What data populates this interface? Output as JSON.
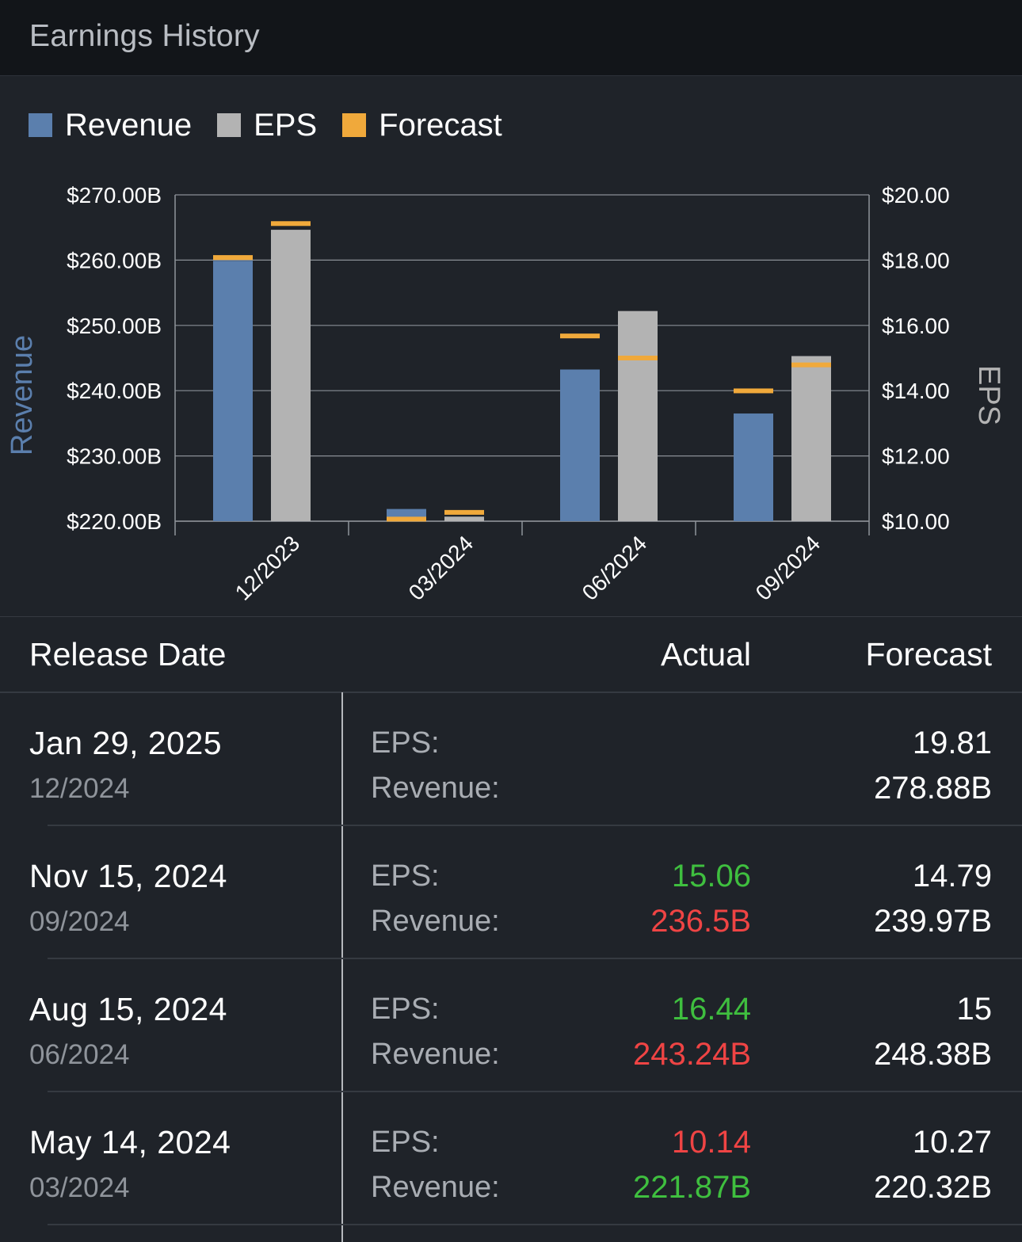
{
  "header": {
    "title": "Earnings History"
  },
  "legend": [
    {
      "label": "Revenue",
      "color": "#5b7fad"
    },
    {
      "label": "EPS",
      "color": "#b3b3b3"
    },
    {
      "label": "Forecast",
      "color": "#f0a93b"
    }
  ],
  "colors": {
    "revenue": "#5b7fad",
    "eps": "#b3b3b3",
    "forecast": "#f0a93b",
    "positive": "#3fbf3f",
    "negative": "#ef4444"
  },
  "chart_data": {
    "type": "bar",
    "categories": [
      "12/2023",
      "03/2024",
      "06/2024",
      "09/2024"
    ],
    "ylabel_left": "Revenue",
    "ylabel_right": "EPS",
    "y_left_range": [
      220,
      270
    ],
    "y_right_range": [
      10,
      20
    ],
    "y_left_ticks": [
      "$220.00B",
      "$230.00B",
      "$240.00B",
      "$250.00B",
      "$260.00B",
      "$270.00B"
    ],
    "y_right_ticks": [
      "$10.00",
      "$12.00",
      "$14.00",
      "$16.00",
      "$18.00",
      "$20.00"
    ],
    "grid": true,
    "series": [
      {
        "name": "Revenue",
        "axis": "left",
        "values": [
          259.9,
          221.87,
          243.24,
          236.5
        ],
        "forecast": [
          260.4,
          220.32,
          248.38,
          239.97
        ]
      },
      {
        "name": "EPS",
        "axis": "right",
        "values": [
          18.93,
          10.14,
          16.44,
          15.06
        ],
        "forecast": [
          19.12,
          10.27,
          15.0,
          14.79
        ]
      }
    ]
  },
  "table": {
    "headers": {
      "date": "Release Date",
      "actual": "Actual",
      "forecast": "Forecast"
    },
    "rows": [
      {
        "date": "Jan 29, 2025",
        "period": "12/2024",
        "eps_label": "EPS:",
        "revenue_label": "Revenue:",
        "eps_actual": "",
        "eps_actual_status": "",
        "revenue_actual": "",
        "revenue_actual_status": "",
        "eps_forecast": "19.81",
        "revenue_forecast": "278.88B"
      },
      {
        "date": "Nov 15, 2024",
        "period": "09/2024",
        "eps_label": "EPS:",
        "revenue_label": "Revenue:",
        "eps_actual": "15.06",
        "eps_actual_status": "pos",
        "revenue_actual": "236.5B",
        "revenue_actual_status": "neg",
        "eps_forecast": "14.79",
        "revenue_forecast": "239.97B"
      },
      {
        "date": "Aug 15, 2024",
        "period": "06/2024",
        "eps_label": "EPS:",
        "revenue_label": "Revenue:",
        "eps_actual": "16.44",
        "eps_actual_status": "pos",
        "revenue_actual": "243.24B",
        "revenue_actual_status": "neg",
        "eps_forecast": "15",
        "revenue_forecast": "248.38B"
      },
      {
        "date": "May 14, 2024",
        "period": "03/2024",
        "eps_label": "EPS:",
        "revenue_label": "Revenue:",
        "eps_actual": "10.14",
        "eps_actual_status": "neg",
        "revenue_actual": "221.87B",
        "revenue_actual_status": "pos",
        "eps_forecast": "10.27",
        "revenue_forecast": "220.32B"
      }
    ]
  }
}
